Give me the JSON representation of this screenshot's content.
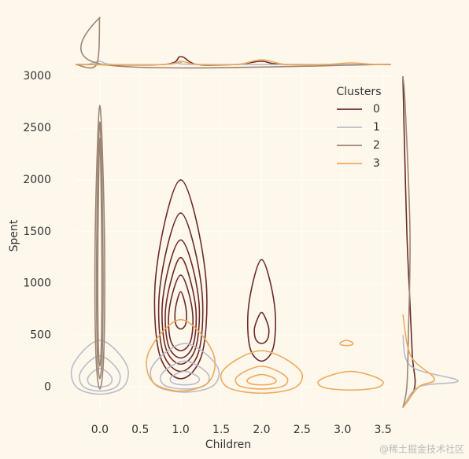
{
  "chart_data": {
    "type": "kde_joint",
    "x_label": "Children",
    "y_label": "Spent",
    "xlim": [
      -0.31,
      3.63
    ],
    "ylim": [
      -210,
      3070
    ],
    "xticks": [
      {
        "value": 0,
        "label": "0.0"
      },
      {
        "value": 0.5,
        "label": "0.5"
      },
      {
        "value": 1,
        "label": "1.0"
      },
      {
        "value": 1.5,
        "label": "1.5"
      },
      {
        "value": 2,
        "label": "2.0"
      },
      {
        "value": 2.5,
        "label": "2.5"
      },
      {
        "value": 3,
        "label": "3.0"
      },
      {
        "value": 3.5,
        "label": "3.5"
      }
    ],
    "yticks": [
      0,
      500,
      1000,
      1500,
      2000,
      2500,
      3000
    ],
    "grid": true,
    "legend_title": "Clusters",
    "legend_position": "upper right",
    "watermark": "@稀土掘金技术社区",
    "series": [
      {
        "name": "0",
        "color": "#6b2a2a",
        "contours": [
          {
            "x": [
              1,
              1.19,
              1.32,
              1.26,
              1,
              0.74,
              0.68,
              0.81
            ],
            "y": [
              2000,
              1616,
              944,
              310,
              80,
              310,
              944,
              1616
            ]
          },
          {
            "x": [
              1,
              1.16,
              1.27,
              1.22,
              1,
              0.78,
              0.73,
              0.84
            ],
            "y": [
              1680,
              1374,
              839,
              334,
              150,
              334,
              839,
              1374
            ]
          },
          {
            "x": [
              1,
              1.14,
              1.23,
              1.18,
              1,
              0.82,
              0.77,
              0.86
            ],
            "y": [
              1420,
              1180,
              760,
              364,
              220,
              364,
              760,
              1180
            ]
          },
          {
            "x": [
              1,
              1.11,
              1.19,
              1.15,
              1,
              0.85,
              0.81,
              0.89
            ],
            "y": [
              1250,
              1056,
              717,
              396,
              280,
              396,
              717,
              1056
            ]
          },
          {
            "x": [
              1,
              1.09,
              1.15,
              1.12,
              1,
              0.88,
              0.85,
              0.91
            ],
            "y": [
              1080,
              934,
              679,
              438,
              350,
              438,
              679,
              934
            ]
          },
          {
            "x": [
              1,
              1.04,
              1.07,
              1.06,
              1,
              0.94,
              0.93,
              0.96
            ],
            "y": [
              920,
              848,
              722,
              603,
              560,
              603,
              722,
              848
            ]
          },
          {
            "x": [
              2,
              2.1,
              2.17,
              2.14,
              2,
              1.86,
              1.83,
              1.9
            ],
            "y": [
              1230,
              1034,
              691,
              368,
              250,
              368,
              691,
              1034
            ]
          },
          {
            "x": [
              2,
              2.05,
              2.09,
              2.07,
              2,
              1.93,
              1.91,
              1.95
            ],
            "y": [
              720,
              660,
              555,
              456,
              420,
              456,
              555,
              660
            ]
          }
        ],
        "marginal_x": {
          "x": [
            -0.3,
            0.8,
            1,
            1.2,
            1.7,
            2,
            2.3,
            3.6
          ],
          "density": [
            0,
            0,
            1.0,
            0,
            0,
            0.4,
            0,
            0
          ]
        },
        "marginal_y": {
          "y": [
            -200,
            0,
            300,
            800,
            1500,
            2500,
            3000
          ],
          "density": [
            0,
            1.5,
            1.2,
            0.9,
            0.5,
            0.15,
            0
          ]
        }
      },
      {
        "name": "1",
        "color": "#b9bcc8",
        "contours": [
          {
            "x": [
              0,
              0.21,
              0.35,
              0.28,
              0,
              -0.28,
              -0.35,
              -0.21
            ],
            "y": [
              450,
              346,
              164,
              -8,
              -70,
              -8,
              164,
              346
            ]
          },
          {
            "x": [
              0,
              0.15,
              0.25,
              0.2,
              0,
              -0.2,
              -0.25,
              -0.15
            ],
            "y": [
              300,
              232,
              113,
              1,
              -40,
              1,
              113,
              232
            ]
          },
          {
            "x": [
              0,
              0.09,
              0.15,
              0.12,
              0,
              -0.12,
              -0.15,
              -0.09
            ],
            "y": [
              180,
              144,
              81,
              22,
              0,
              22,
              81,
              144
            ]
          },
          {
            "x": [
              1.05,
              1.3,
              1.47,
              1.39,
              1.05,
              0.71,
              0.63,
              0.8
            ],
            "y": [
              420,
              326,
              162,
              6,
              -50,
              6,
              162,
              326
            ]
          },
          {
            "x": [
              1.05,
              1.23,
              1.35,
              1.29,
              1.05,
              0.81,
              0.75,
              0.87
            ],
            "y": [
              250,
              196,
              102,
              12,
              -20,
              12,
              102,
              196
            ]
          },
          {
            "x": [
              1.05,
              1.16,
              1.23,
              1.19,
              1.05,
              0.91,
              0.87,
              0.94
            ],
            "y": [
              150,
              124,
              79,
              36,
              20,
              36,
              79,
              124
            ]
          }
        ],
        "marginal_x": {
          "x": [
            -0.3,
            -0.15,
            0,
            0.15,
            0.8,
            1,
            1.2,
            3.6
          ],
          "density": [
            0,
            0,
            0.4,
            0,
            0,
            0.3,
            0,
            0
          ]
        },
        "marginal_y": {
          "y": [
            -200,
            0,
            60,
            200,
            500
          ],
          "density": [
            0,
            2,
            7,
            1,
            0
          ]
        }
      },
      {
        "name": "2",
        "color": "#9c8573",
        "contours": [
          {
            "x": [
              0,
              0.036,
              0.06,
              0.048,
              0,
              -0.048,
              -0.06,
              -0.036
            ],
            "y": [
              2720,
              2172,
              1213,
              309,
              -20,
              309,
              1213,
              2172
            ]
          },
          {
            "x": [
              0,
              0.024,
              0.04,
              0.032,
              0,
              -0.032,
              -0.04,
              -0.024
            ],
            "y": [
              2560,
              2064,
              1196,
              378,
              80,
              378,
              1196,
              2064
            ]
          },
          {
            "x": [
              0,
              0.015,
              0.025,
              0.02,
              0,
              -0.02,
              -0.025,
              -0.015
            ],
            "y": [
              2400,
              1960,
              1190,
              464,
              200,
              464,
              1190,
              1960
            ]
          }
        ],
        "marginal_x": {
          "x": [
            -0.3,
            -0.04,
            0,
            0.04,
            3.6
          ],
          "density": [
            0,
            0,
            6,
            0,
            0
          ]
        },
        "marginal_y": {
          "y": [
            -200,
            0,
            500,
            1500,
            2700,
            3000
          ],
          "density": [
            0,
            0.5,
            0.7,
            0.9,
            0.3,
            0
          ]
        }
      },
      {
        "name": "3",
        "color": "#f0a95a",
        "contours": [
          {
            "x": [
              1,
              1.25,
              1.42,
              1.34,
              1,
              0.66,
              0.58,
              0.75
            ],
            "y": [
              650,
              512,
              271,
              43,
              -40,
              43,
              271,
              512
            ]
          },
          {
            "x": [
              2,
              2.3,
              2.5,
              2.4,
              2,
              1.6,
              1.5,
              1.7
            ],
            "y": [
              350,
              268,
              125,
              -11,
              -60,
              -11,
              125,
              268
            ]
          },
          {
            "x": [
              2,
              2.19,
              2.32,
              2.26,
              2,
              1.74,
              1.68,
              1.81
            ],
            "y": [
              200,
              156,
              79,
              6,
              -20,
              6,
              79,
              156
            ]
          },
          {
            "x": [
              2,
              2.11,
              2.18,
              2.14,
              2,
              1.86,
              1.82,
              1.89
            ],
            "y": [
              120,
              100,
              65,
              32,
              20,
              32,
              65,
              100
            ]
          },
          {
            "x": [
              3.1,
              3.34,
              3.5,
              3.42,
              3.1,
              2.78,
              2.7,
              2.86
            ],
            "y": [
              150,
              114,
              51,
              -8,
              -30,
              -8,
              51,
              114
            ]
          },
          {
            "x": [
              3.05,
              3.1,
              3.13,
              3.11,
              3.05,
              2.99,
              2.97,
              3.0
            ],
            "y": [
              450,
              440,
              422,
              406,
              400,
              406,
              422,
              440
            ]
          }
        ],
        "marginal_x": {
          "x": [
            -0.3,
            0.8,
            1,
            1.2,
            1.7,
            2,
            2.3,
            2.8,
            3.1,
            3.4,
            3.6
          ],
          "density": [
            0,
            0,
            0.4,
            0,
            0,
            0.6,
            0,
            0,
            0.2,
            0,
            0
          ]
        },
        "marginal_y": {
          "y": [
            -200,
            0,
            80,
            300,
            700
          ],
          "density": [
            0,
            2,
            4,
            1,
            0
          ]
        }
      }
    ]
  }
}
